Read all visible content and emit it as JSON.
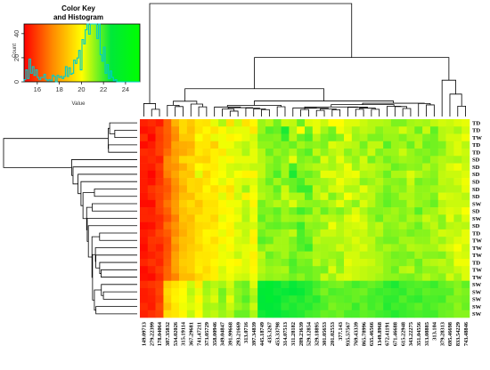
{
  "chart_data": {
    "type": "heatmap",
    "color_key": {
      "title_line1": "Color Key",
      "title_line2": "and Histogram",
      "xlabel": "Value",
      "ylabel": "Count",
      "x_ticks": [
        16,
        18,
        20,
        22,
        24
      ],
      "y_ticks": [
        0,
        20,
        40
      ],
      "xlim": [
        14.8,
        25.3
      ],
      "ylim": [
        0,
        48
      ],
      "colors": [
        "#ff0000",
        "#ff8c00",
        "#ffff00",
        "#00e83a",
        "#00ff00"
      ],
      "histogram_color": "#00cccc"
    },
    "row_labels": [
      "TD",
      "TD",
      "TW",
      "TD",
      "TD",
      "SD",
      "SD",
      "SD",
      "SD",
      "SD",
      "SD",
      "SW",
      "SD",
      "SW",
      "SD",
      "TD",
      "TW",
      "TW",
      "TW",
      "TD",
      "TW",
      "TW",
      "SW",
      "SW",
      "SW",
      "SW",
      "SW"
    ],
    "column_labels": [
      "149.09713",
      "279.22399",
      "178.04064",
      "387.35832",
      "534.02026",
      "315.19114",
      "367.29681",
      "741.47211",
      "373.05729",
      "358.00946",
      "349.04847",
      "391.99668",
      "293.21669",
      "313.0716",
      "397.34839",
      "445.18749",
      "435.3267",
      "453.33798",
      "314.07513",
      "311.28182",
      "289.23639",
      "529.12854",
      "329.18895",
      "301.05653",
      "201.02553",
      "377.143",
      "935.57567",
      "769.43339",
      "865.78996",
      "635.46566",
      "1349.8968",
      "672.41191",
      "671.46688",
      "615.22948",
      "343.22275",
      "351.04556",
      "313.08885",
      "313.104",
      "379.28313",
      "695.46698",
      "833.54229",
      "743.48846"
    ],
    "values": [
      [
        15.4,
        15.6,
        15.3,
        16.6,
        18.3,
        19.2,
        18.8,
        19.5,
        19.4,
        20.3,
        20.9,
        19.3,
        20.6,
        19.4,
        19.9,
        21.1,
        20.8,
        21.5,
        20.6,
        20.7,
        21.6,
        20.4,
        20.3,
        20.6,
        20.0,
        20.0,
        20.4,
        20.4,
        20.6,
        20.8,
        20.8,
        20.9,
        21.4,
        21.4,
        21.0,
        20.9,
        21.0,
        20.7,
        20.5,
        20.6,
        20.4,
        20.3
      ],
      [
        15.1,
        15.3,
        16.0,
        16.6,
        17.6,
        19.2,
        18.6,
        19.4,
        19.9,
        19.4,
        19.9,
        20.4,
        20.3,
        20.3,
        19.5,
        21.1,
        21.8,
        21.6,
        22.4,
        20.9,
        20.0,
        21.6,
        20.3,
        21.0,
        21.5,
        20.2,
        20.5,
        21.0,
        20.7,
        20.8,
        21.3,
        21.0,
        21.0,
        20.5,
        20.9,
        21.6,
        20.6,
        21.7,
        20.8,
        20.7,
        21.0,
        20.5
      ],
      [
        15.7,
        14.9,
        15.9,
        16.5,
        17.4,
        18.8,
        18.8,
        20.1,
        19.5,
        20.3,
        20.2,
        19.8,
        20.0,
        20.3,
        20.5,
        21.4,
        21.4,
        21.3,
        22.1,
        20.8,
        21.6,
        21.9,
        20.8,
        21.4,
        21.6,
        21.3,
        20.2,
        21.1,
        20.9,
        21.4,
        21.4,
        21.1,
        21.1,
        21.4,
        21.0,
        20.9,
        21.4,
        21.5,
        20.8,
        20.5,
        20.5,
        20.2
      ],
      [
        15.0,
        15.3,
        16.0,
        16.5,
        18.0,
        18.2,
        18.3,
        19.5,
        19.5,
        18.9,
        20.2,
        20.2,
        20.6,
        20.8,
        20.4,
        21.2,
        21.2,
        21.5,
        21.3,
        21.6,
        21.0,
        21.3,
        21.2,
        21.4,
        20.4,
        20.6,
        20.7,
        20.8,
        21.5,
        20.7,
        20.7,
        21.8,
        21.1,
        21.0,
        21.6,
        20.8,
        21.6,
        21.5,
        21.4,
        20.7,
        20.4,
        20.8
      ],
      [
        15.6,
        15.5,
        16.0,
        16.8,
        17.8,
        18.1,
        18.5,
        19.6,
        19.3,
        19.7,
        19.5,
        20.4,
        20.4,
        20.9,
        20.3,
        20.8,
        21.6,
        21.1,
        21.4,
        20.9,
        21.5,
        21.8,
        20.7,
        21.2,
        20.8,
        20.6,
        21.3,
        20.9,
        21.2,
        20.6,
        21.4,
        21.1,
        21.1,
        20.6,
        21.1,
        21.4,
        21.3,
        21.5,
        21.2,
        20.7,
        20.4,
        20.6
      ],
      [
        15.4,
        15.6,
        15.4,
        17.4,
        18.0,
        19.2,
        19.3,
        19.1,
        19.0,
        19.7,
        20.2,
        19.9,
        20.3,
        20.3,
        20.3,
        20.8,
        21.1,
        21.5,
        21.2,
        20.3,
        21.4,
        21.2,
        21.5,
        20.4,
        21.0,
        20.3,
        20.9,
        21.2,
        20.5,
        21.5,
        21.0,
        21.5,
        21.2,
        21.0,
        21.1,
        21.2,
        21.5,
        21.0,
        20.8,
        20.9,
        21.0,
        20.7
      ],
      [
        15.4,
        15.3,
        15.9,
        17.4,
        17.6,
        18.2,
        19.0,
        20.0,
        19.7,
        19.6,
        20.2,
        20.5,
        20.6,
        20.5,
        20.7,
        20.7,
        21.3,
        21.5,
        21.0,
        22.0,
        21.2,
        21.0,
        20.8,
        20.8,
        21.0,
        20.7,
        20.2,
        21.1,
        20.6,
        20.7,
        20.9,
        21.0,
        21.6,
        21.4,
        21.2,
        21.3,
        20.8,
        21.2,
        20.8,
        20.4,
        20.2,
        20.6
      ],
      [
        15.3,
        14.9,
        15.7,
        17.2,
        18.0,
        18.8,
        18.7,
        20.4,
        19.1,
        19.8,
        20.1,
        20.5,
        20.1,
        19.8,
        19.8,
        20.7,
        21.3,
        21.9,
        21.0,
        22.4,
        21.4,
        21.6,
        21.3,
        20.3,
        20.3,
        20.6,
        20.3,
        20.2,
        20.9,
        20.8,
        21.1,
        21.6,
        20.9,
        20.9,
        20.4,
        20.8,
        21.1,
        21.3,
        20.7,
        20.6,
        20.6,
        20.4
      ],
      [
        15.3,
        15.1,
        15.8,
        16.6,
        17.6,
        18.6,
        19.2,
        19.1,
        19.4,
        20.0,
        20.4,
        19.9,
        20.4,
        20.5,
        20.4,
        21.0,
        21.6,
        21.0,
        21.5,
        21.6,
        21.9,
        21.1,
        21.1,
        21.0,
        20.8,
        20.2,
        20.5,
        20.6,
        21.3,
        21.1,
        20.8,
        21.2,
        21.3,
        21.4,
        20.6,
        21.5,
        21.3,
        21.4,
        20.7,
        20.8,
        20.5,
        20.2
      ],
      [
        15.3,
        15.8,
        16.1,
        16.4,
        17.4,
        18.2,
        19.2,
        19.1,
        19.9,
        19.3,
        19.7,
        19.3,
        20.4,
        21.1,
        20.2,
        21.0,
        21.1,
        21.7,
        20.6,
        21.6,
        22.1,
        22.1,
        20.7,
        21.1,
        20.5,
        20.4,
        20.9,
        20.9,
        20.3,
        20.8,
        21.0,
        21.5,
        21.1,
        21.3,
        20.8,
        21.2,
        21.2,
        21.0,
        20.9,
        20.8,
        20.8,
        20.3
      ],
      [
        15.2,
        15.6,
        16.0,
        16.6,
        17.6,
        18.6,
        18.6,
        19.4,
        19.6,
        19.6,
        20.4,
        19.6,
        20.6,
        19.7,
        20.1,
        20.8,
        21.1,
        21.4,
        20.5,
        20.9,
        20.9,
        21.8,
        20.8,
        20.4,
        21.4,
        20.9,
        20.1,
        20.5,
        20.8,
        20.7,
        21.3,
        21.6,
        21.4,
        20.9,
        20.9,
        21.2,
        21.1,
        21.4,
        20.4,
        20.5,
        20.6,
        20.8
      ],
      [
        15.0,
        15.0,
        16.1,
        17.0,
        17.8,
        18.9,
        19.3,
        18.7,
        19.4,
        19.4,
        19.9,
        20.2,
        20.2,
        20.7,
        19.8,
        21.5,
        21.1,
        20.8,
        21.1,
        20.4,
        21.1,
        21.2,
        21.3,
        21.1,
        20.8,
        20.3,
        20.9,
        21.3,
        20.4,
        20.8,
        21.3,
        21.7,
        21.4,
        21.4,
        20.8,
        21.1,
        21.3,
        21.6,
        20.8,
        20.6,
        20.6,
        20.6
      ],
      [
        15.5,
        15.4,
        16.0,
        16.6,
        17.8,
        18.6,
        19.0,
        19.0,
        19.5,
        19.5,
        19.8,
        19.9,
        20.4,
        20.8,
        20.3,
        21.4,
        21.4,
        21.7,
        21.1,
        21.5,
        22.0,
        21.7,
        20.9,
        21.6,
        21.1,
        21.4,
        21.0,
        20.4,
        20.9,
        21.3,
        21.3,
        21.2,
        21.0,
        21.3,
        21.1,
        21.8,
        21.1,
        21.0,
        20.6,
        20.4,
        20.5,
        20.1
      ],
      [
        15.5,
        15.5,
        15.6,
        16.3,
        17.2,
        18.7,
        18.5,
        19.5,
        19.5,
        19.1,
        20.3,
        20.0,
        20.2,
        20.9,
        20.2,
        21.7,
        21.2,
        21.5,
        21.0,
        21.1,
        21.2,
        20.9,
        21.1,
        20.7,
        20.8,
        21.0,
        20.4,
        20.2,
        20.6,
        21.1,
        21.6,
        21.0,
        21.1,
        21.4,
        20.9,
        21.1,
        20.6,
        20.9,
        21.3,
        20.3,
        21.0,
        20.4
      ],
      [
        15.0,
        15.1,
        15.7,
        16.9,
        17.6,
        18.4,
        18.7,
        19.2,
        19.3,
        19.5,
        20.0,
        19.8,
        20.6,
        20.6,
        20.5,
        21.2,
        21.6,
        21.7,
        21.5,
        21.6,
        22.1,
        21.2,
        21.3,
        21.2,
        20.2,
        20.8,
        20.6,
        20.5,
        20.4,
        21.0,
        20.7,
        21.3,
        21.2,
        20.9,
        21.2,
        21.6,
        21.0,
        20.7,
        21.3,
        20.8,
        20.7,
        20.8
      ],
      [
        15.3,
        15.5,
        16.1,
        16.5,
        17.4,
        18.2,
        18.8,
        19.3,
        19.9,
        19.8,
        20.3,
        19.7,
        20.3,
        20.7,
        19.8,
        21.5,
        21.2,
        21.2,
        21.0,
        20.7,
        21.9,
        21.4,
        21.1,
        20.6,
        20.6,
        20.8,
        20.5,
        20.7,
        20.6,
        21.0,
        20.8,
        21.4,
        21.3,
        21.2,
        21.5,
        21.3,
        21.3,
        20.9,
        20.5,
        20.6,
        20.7,
        20.3
      ],
      [
        15.2,
        15.8,
        15.8,
        16.2,
        17.9,
        18.6,
        18.7,
        19.4,
        19.8,
        19.3,
        19.8,
        20.1,
        20.5,
        20.6,
        19.7,
        21.8,
        21.6,
        21.0,
        21.0,
        21.4,
        21.9,
        21.7,
        20.7,
        20.9,
        20.9,
        20.9,
        20.7,
        20.4,
        20.7,
        20.7,
        21.3,
        21.5,
        21.5,
        21.0,
        21.0,
        21.2,
        21.2,
        20.8,
        21.1,
        20.7,
        20.4,
        20.3
      ],
      [
        15.0,
        15.7,
        15.4,
        16.3,
        17.5,
        18.5,
        18.9,
        19.1,
        19.6,
        19.7,
        20.3,
        19.9,
        20.4,
        20.3,
        20.2,
        21.3,
        20.9,
        21.0,
        21.0,
        21.3,
        21.8,
        22.1,
        21.0,
        21.0,
        20.9,
        20.5,
        20.8,
        20.6,
        20.4,
        20.8,
        21.2,
        20.9,
        21.1,
        21.3,
        20.8,
        20.9,
        21.0,
        21.0,
        20.6,
        20.4,
        20.1,
        20.6
      ],
      [
        15.2,
        15.4,
        15.7,
        16.4,
        17.9,
        18.7,
        19.0,
        19.5,
        19.5,
        19.6,
        20.2,
        20.3,
        20.7,
        20.3,
        19.7,
        20.7,
        21.6,
        21.3,
        21.0,
        21.6,
        21.2,
        21.1,
        20.9,
        21.0,
        21.1,
        21.2,
        20.5,
        20.5,
        20.8,
        20.8,
        20.9,
        21.2,
        21.5,
        21.4,
        21.5,
        21.0,
        21.3,
        21.3,
        21.4,
        20.8,
        20.4,
        20.5
      ],
      [
        15.5,
        15.8,
        15.5,
        16.5,
        18.0,
        18.9,
        19.0,
        19.6,
        19.5,
        19.9,
        20.2,
        20.0,
        19.9,
        20.4,
        19.8,
        20.9,
        21.3,
        21.2,
        21.4,
        21.9,
        21.4,
        21.5,
        20.7,
        21.2,
        20.8,
        21.3,
        20.3,
        20.5,
        20.5,
        20.6,
        20.9,
        21.2,
        21.3,
        21.4,
        21.1,
        21.6,
        20.9,
        20.8,
        20.7,
        21.0,
        20.2,
        20.2
      ],
      [
        15.0,
        15.4,
        15.9,
        16.7,
        17.9,
        18.7,
        19.0,
        19.7,
        19.2,
        19.7,
        20.5,
        20.1,
        20.3,
        20.4,
        19.9,
        20.8,
        21.1,
        21.0,
        20.9,
        21.8,
        21.6,
        21.6,
        21.4,
        21.5,
        20.4,
        21.2,
        20.5,
        20.6,
        20.7,
        20.8,
        20.8,
        21.2,
        21.6,
        20.8,
        20.7,
        21.5,
        21.2,
        21.2,
        20.9,
        20.9,
        20.6,
        20.4
      ],
      [
        15.1,
        15.0,
        15.6,
        16.7,
        17.3,
        18.5,
        18.5,
        19.1,
        19.5,
        19.7,
        20.4,
        20.2,
        20.5,
        20.6,
        20.2,
        21.0,
        21.2,
        21.1,
        21.2,
        21.5,
        21.2,
        21.6,
        21.4,
        20.6,
        21.1,
        20.5,
        20.4,
        20.6,
        20.7,
        20.8,
        21.0,
        21.2,
        21.2,
        21.4,
        21.5,
        21.2,
        20.8,
        21.1,
        21.3,
        20.5,
        21.0,
        20.4
      ],
      [
        15.6,
        15.8,
        16.0,
        18.9,
        19.4,
        19.8,
        20.6,
        19.6,
        21.1,
        20.8,
        21.0,
        20.5,
        21.4,
        21.6,
        20.4,
        22.6,
        23.1,
        22.6,
        22.3,
        22.6,
        22.4,
        22.3,
        22.0,
        21.7,
        21.5,
        21.4,
        21.7,
        22.0,
        21.8,
        21.6,
        21.8,
        22.2,
        22.4,
        22.0,
        21.9,
        21.8,
        21.9,
        22.1,
        21.7,
        21.5,
        21.3,
        21.7
      ],
      [
        15.3,
        15.5,
        16.1,
        19.2,
        19.7,
        20.0,
        20.8,
        20.3,
        21.0,
        20.6,
        21.5,
        20.7,
        21.2,
        21.5,
        20.8,
        22.9,
        23.0,
        22.5,
        22.6,
        22.7,
        22.6,
        22.3,
        21.8,
        21.4,
        21.9,
        21.8,
        21.7,
        21.6,
        21.5,
        21.9,
        22.1,
        22.0,
        22.1,
        22.2,
        21.8,
        22.0,
        21.7,
        21.8,
        21.8,
        21.8,
        21.2,
        21.4
      ],
      [
        15.3,
        15.4,
        15.9,
        19.0,
        19.8,
        20.1,
        20.6,
        19.9,
        20.8,
        20.4,
        21.4,
        20.3,
        21.3,
        21.8,
        21.0,
        22.7,
        23.1,
        22.8,
        22.4,
        22.2,
        22.4,
        22.1,
        22.3,
        21.8,
        21.6,
        21.7,
        21.8,
        21.6,
        21.8,
        22.0,
        21.9,
        22.2,
        22.2,
        21.8,
        22.1,
        22.2,
        21.9,
        21.9,
        22.0,
        21.4,
        21.4,
        21.5
      ],
      [
        15.6,
        15.3,
        16.2,
        18.6,
        19.5,
        20.2,
        20.4,
        20.2,
        21.0,
        20.9,
        21.2,
        20.6,
        21.1,
        21.4,
        20.6,
        22.8,
        22.7,
        22.6,
        22.2,
        22.4,
        22.2,
        22.3,
        22.0,
        21.9,
        21.4,
        21.6,
        21.6,
        22.1,
        21.6,
        22.0,
        21.8,
        22.3,
        22.0,
        22.1,
        21.9,
        21.7,
        22.0,
        21.8,
        21.6,
        21.6,
        21.2,
        21.6
      ],
      [
        15.4,
        15.7,
        16.0,
        19.3,
        19.5,
        19.9,
        20.7,
        20.0,
        20.9,
        20.7,
        21.1,
        20.8,
        21.6,
        21.6,
        20.9,
        22.5,
        22.9,
        22.7,
        22.5,
        22.4,
        22.3,
        22.0,
        21.9,
        21.6,
        21.7,
        21.5,
        21.9,
        21.9,
        21.7,
        21.8,
        22.0,
        22.1,
        22.3,
        22.1,
        22.0,
        21.9,
        22.0,
        22.0,
        21.6,
        21.5,
        21.3,
        21.3
      ]
    ]
  }
}
